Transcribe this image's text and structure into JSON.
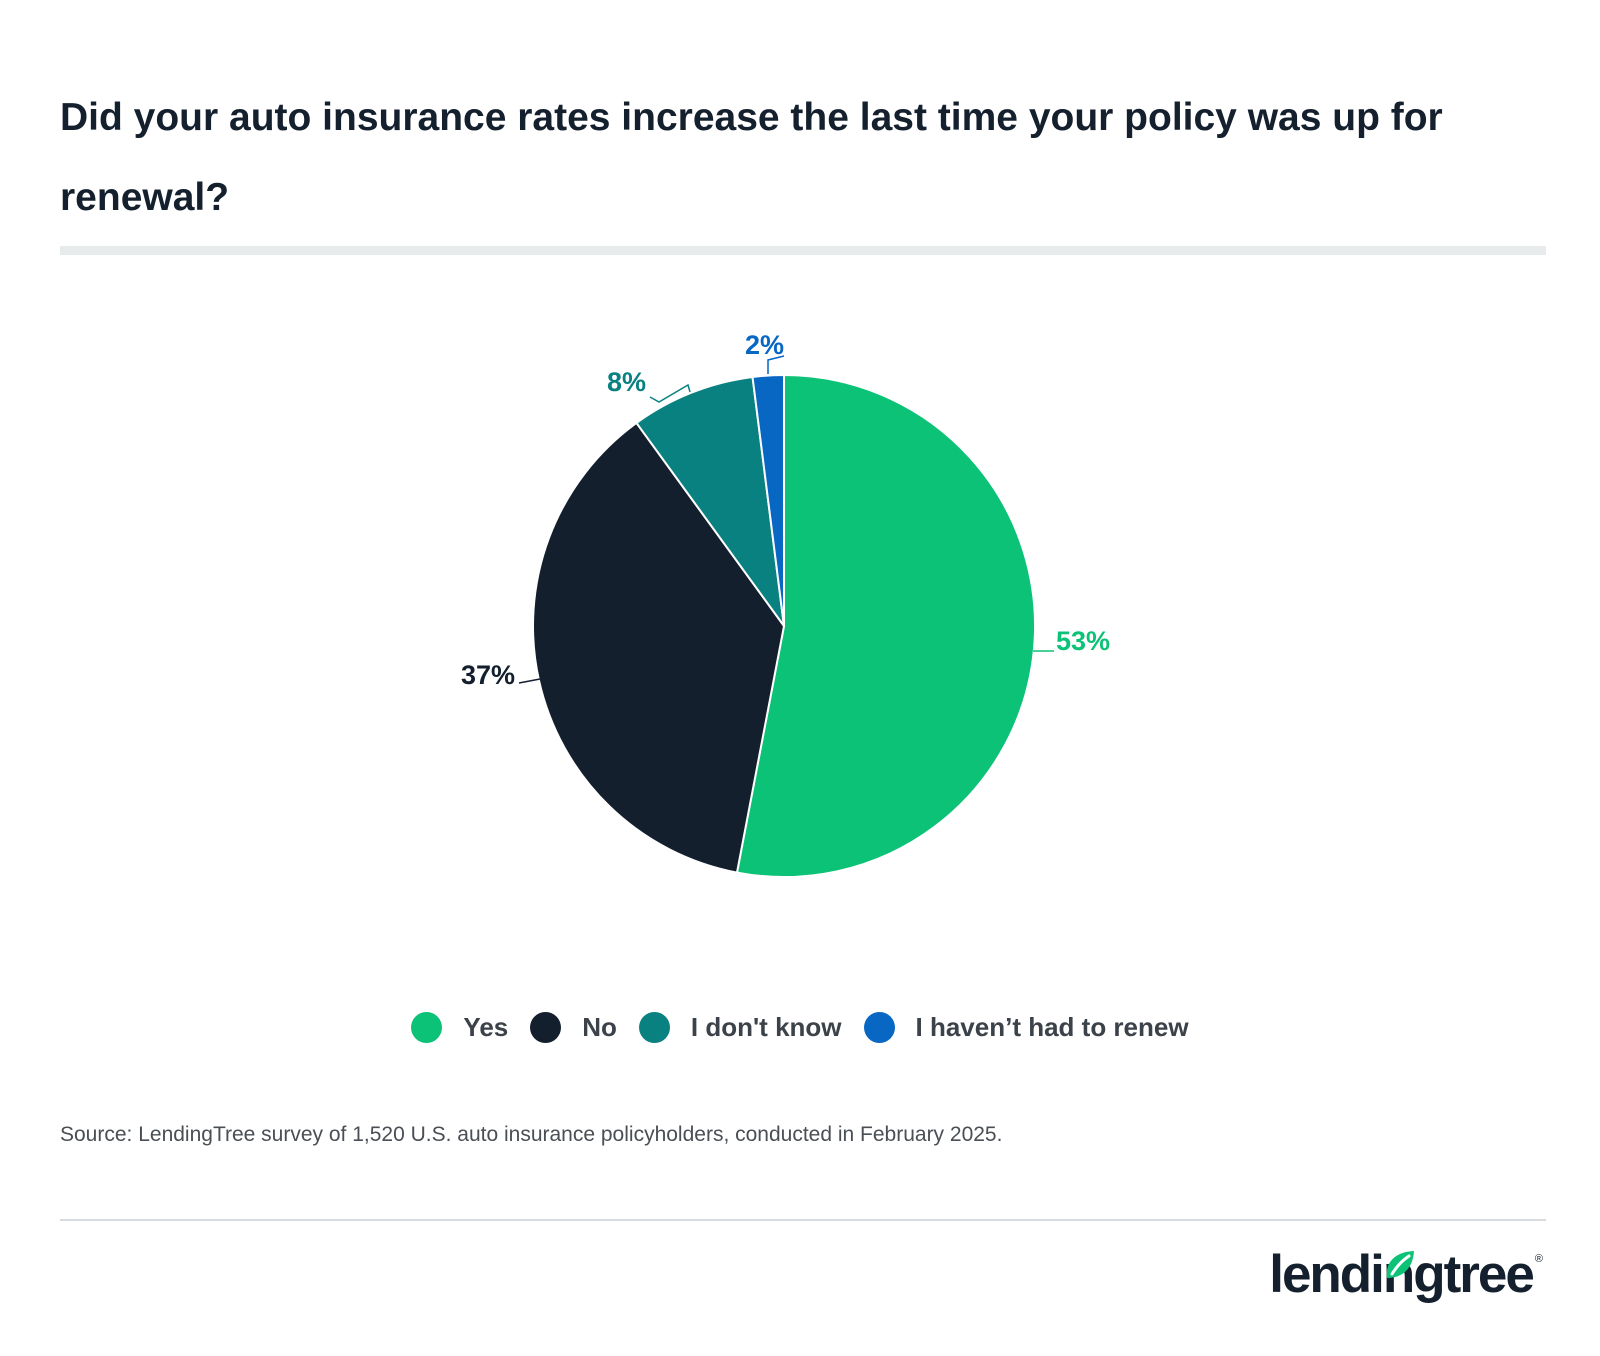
{
  "title": "Did your auto insurance rates increase the last time your policy was up for renewal?",
  "source": "Source: LendingTree survey of 1,520 U.S. auto insurance policyholders, conducted in February 2025.",
  "brand": {
    "name": "lendingtree",
    "registered_mark": "®"
  },
  "chart_data": {
    "type": "pie",
    "title": "Did your auto insurance rates increase the last time your policy was up for renewal?",
    "start_angle": "12 o'clock",
    "direction": "clockwise",
    "slices": [
      {
        "label": "Yes",
        "value": 53,
        "value_label": "53%",
        "color": "#0cc277"
      },
      {
        "label": "No",
        "value": 37,
        "value_label": "37%",
        "color": "#141f2e"
      },
      {
        "label": "I don't know",
        "value": 8,
        "value_label": "8%",
        "color": "#0a8181"
      },
      {
        "label": "I haven’t had to renew",
        "value": 2,
        "value_label": "2%",
        "color": "#0767c3"
      }
    ],
    "legend_position": "bottom"
  }
}
